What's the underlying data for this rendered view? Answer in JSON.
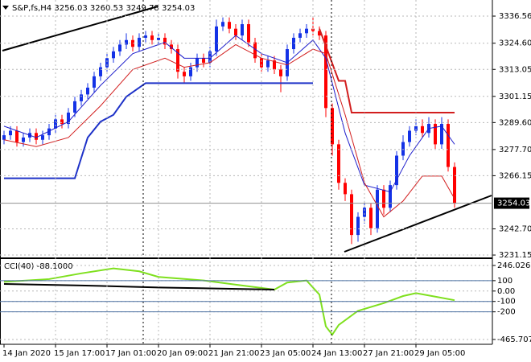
{
  "chart_data": [
    {
      "type": "candlestick",
      "title": "S&P,fs,H4",
      "ohlc_header": [
        3256.03,
        3260.53,
        3249.78,
        3254.03
      ],
      "open": [
        3282,
        3284,
        3286,
        3281,
        3283,
        3285,
        3282,
        3284,
        3287,
        3291,
        3289,
        3294,
        3299,
        3302,
        3305,
        3310,
        3314,
        3318,
        3321,
        3324,
        3326,
        3323,
        3327,
        3328,
        3326,
        3327,
        3324,
        3322,
        3312,
        3310,
        3314,
        3318,
        3316,
        3321,
        3332,
        3334,
        3331,
        3328,
        3333,
        3325,
        3318,
        3314,
        3317,
        3313,
        3310,
        3322,
        3327,
        3329,
        3331,
        3330,
        3328,
        3296,
        3280,
        3263,
        3258,
        3240,
        3248,
        3252,
        3243,
        3260,
        3252,
        3262,
        3275,
        3281,
        3286,
        3288,
        3285,
        3289,
        3280,
        3289,
        3270
      ],
      "high": [
        3286,
        3288,
        3288,
        3285,
        3287,
        3287,
        3286,
        3289,
        3293,
        3293,
        3296,
        3301,
        3304,
        3307,
        3312,
        3316,
        3320,
        3323,
        3326,
        3329,
        3328,
        3329,
        3330,
        3330,
        3329,
        3329,
        3326,
        3324,
        3314,
        3316,
        3320,
        3320,
        3323,
        3335,
        3336,
        3336,
        3333,
        3335,
        3335,
        3327,
        3320,
        3319,
        3319,
        3315,
        3324,
        3329,
        3331,
        3333,
        3336,
        3332,
        3330,
        3298,
        3282,
        3265,
        3260,
        3250,
        3255,
        3254,
        3262,
        3262,
        3264,
        3277,
        3284,
        3288,
        3291,
        3291,
        3292,
        3291,
        3292,
        3291,
        3272
      ],
      "low": [
        3280,
        3282,
        3279,
        3279,
        3281,
        3280,
        3280,
        3282,
        3285,
        3287,
        3287,
        3292,
        3297,
        3300,
        3303,
        3308,
        3312,
        3316,
        3319,
        3322,
        3321,
        3321,
        3325,
        3324,
        3324,
        3322,
        3320,
        3309,
        3307,
        3308,
        3312,
        3314,
        3314,
        3319,
        3330,
        3329,
        3326,
        3326,
        3323,
        3316,
        3312,
        3312,
        3311,
        3303,
        3308,
        3320,
        3325,
        3327,
        3328,
        3326,
        3292,
        3275,
        3260,
        3255,
        3236,
        3237,
        3245,
        3240,
        3241,
        3249,
        3250,
        3260,
        3273,
        3279,
        3284,
        3283,
        3283,
        3278,
        3278,
        3268,
        3252
      ],
      "close": [
        3284,
        3286,
        3281,
        3283,
        3285,
        3282,
        3284,
        3287,
        3291,
        3289,
        3294,
        3299,
        3302,
        3305,
        3310,
        3314,
        3318,
        3321,
        3324,
        3326,
        3323,
        3327,
        3328,
        3326,
        3327,
        3324,
        3322,
        3312,
        3310,
        3314,
        3318,
        3316,
        3321,
        3332,
        3334,
        3331,
        3328,
        3333,
        3325,
        3318,
        3314,
        3317,
        3313,
        3310,
        3322,
        3327,
        3329,
        3331,
        3330,
        3328,
        3296,
        3280,
        3263,
        3258,
        3240,
        3248,
        3252,
        3243,
        3260,
        3252,
        3262,
        3275,
        3281,
        3286,
        3288,
        3285,
        3289,
        3280,
        3289,
        3270,
        3254
      ],
      "up_color": "#1432e6",
      "down_color": "#ff0000",
      "lines": [
        {
          "color": "#1e1ecc",
          "width": 1,
          "x": [
            0,
            5,
            10,
            15,
            20,
            25,
            28,
            32,
            36,
            40,
            44,
            48,
            50,
            53,
            56,
            60,
            63,
            66,
            68,
            70
          ],
          "values": [
            3288,
            3283,
            3290,
            3306,
            3320,
            3325,
            3318,
            3318,
            3328,
            3320,
            3316,
            3326,
            3318,
            3285,
            3262,
            3259,
            3275,
            3287,
            3288,
            3280
          ]
        },
        {
          "color": "#d21e1e",
          "width": 1,
          "x": [
            0,
            5,
            10,
            15,
            20,
            25,
            28,
            32,
            36,
            40,
            44,
            48,
            50,
            53,
            56,
            59,
            62,
            65,
            68,
            70
          ],
          "values": [
            3282,
            3279,
            3283,
            3297,
            3313,
            3318,
            3314,
            3316,
            3324,
            3318,
            3315,
            3322,
            3320,
            3293,
            3263,
            3248,
            3255,
            3266,
            3266,
            3256
          ]
        },
        {
          "color": "#1e32c8",
          "width": 2,
          "x": [
            0,
            11,
            13,
            15,
            17,
            19,
            20,
            22,
            48
          ],
          "values": [
            3265,
            3265,
            3283,
            3290,
            3293,
            3301,
            3303,
            3307,
            3307
          ]
        },
        {
          "color": "#d21e1e",
          "width": 2,
          "x": [
            49,
            52,
            53,
            54,
            70
          ],
          "values": [
            3331,
            3308,
            3308,
            3294,
            3294
          ]
        }
      ],
      "last_price": 3254.03,
      "ylim": [
        3230.1,
        3342.6
      ],
      "yticks": [
        3336.56,
        {
          "value": 3324.6,
          "label": "3324.60"
        },
        3313.05,
        3301.15,
        {
          "value": 3289.6,
          "label": "3289.60"
        },
        {
          "value": 3277.7,
          "label": "3277.70"
        },
        3266.15,
        {
          "value": 3242.7,
          "label": "3242.70"
        },
        3231.15
      ],
      "xticks": [
        {
          "value": 0,
          "label": "14 Jan 2020"
        },
        {
          "value": 8,
          "label": "15 Jan 17:00"
        },
        {
          "value": 16,
          "label": "17 Jan 01:00"
        },
        {
          "value": 24,
          "label": "20 Jan 09:00"
        },
        {
          "value": 32,
          "label": "21 Jan 21:00"
        },
        {
          "value": 40,
          "label": "23 Jan 05:00"
        },
        {
          "value": 48,
          "label": "24 Jan 13:00"
        },
        {
          "value": 56,
          "label": "27 Jan 21:00"
        },
        {
          "value": 64,
          "label": "29 Jan 05:00"
        }
      ],
      "grid": true
    },
    {
      "type": "line",
      "title": "CCI(40) -88.1000",
      "lines": [
        {
          "color": "#7fe01e",
          "width": 2,
          "x": [
            0,
            7,
            12,
            17,
            21,
            24,
            31,
            37,
            42,
            44,
            47,
            49,
            50,
            51,
            52,
            55,
            59,
            62,
            64,
            67,
            70
          ],
          "values": [
            88,
            115,
            170,
            218,
            190,
            136,
            102,
            54,
            14,
            82,
            102,
            -34,
            -340,
            -420,
            -326,
            -190,
            -116,
            -48,
            -20,
            -54,
            -88.1
          ]
        },
        {
          "color": "#000000",
          "width": 2,
          "x": [
            0,
            12,
            24,
            37,
            42
          ],
          "values": [
            68,
            54,
            34,
            20,
            14
          ]
        }
      ],
      "levels": [
        100,
        -100,
        -200
      ],
      "level_color": "#4a6fa0",
      "ylim": [
        -465.7074,
        246.026
      ],
      "yticks": [
        {
          "value": 246.026,
          "label": "246.026"
        },
        100,
        {
          "value": 0,
          "label": "0.00"
        },
        -100,
        -200,
        -465.7074
      ],
      "grid": true
    }
  ]
}
